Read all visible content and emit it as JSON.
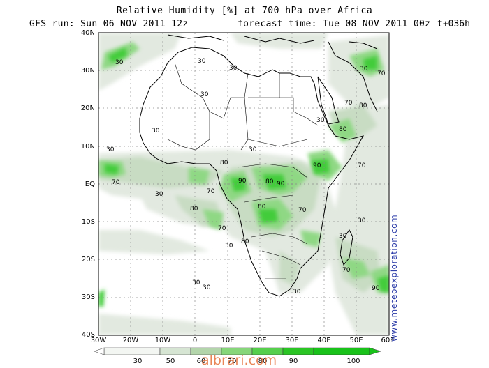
{
  "title": {
    "line1": "Relative Humidity [%] at 700 hPa over  Africa",
    "run": "GFS run: Sun 06 NOV 2011 12z",
    "forecast": "forecast time: Tue 08 NOV 2011 00z",
    "step": "t+036h"
  },
  "map": {
    "lat_labels": [
      "40N",
      "30N",
      "20N",
      "10N",
      "EQ",
      "10S",
      "20S",
      "30S",
      "40S"
    ],
    "lon_labels": [
      "30W",
      "20W",
      "10W",
      "0",
      "10E",
      "20E",
      "30E",
      "40E",
      "50E",
      "60E"
    ],
    "contour_labels": [
      "30",
      "70",
      "80",
      "90"
    ]
  },
  "colorbar": {
    "levels": [
      "30",
      "50",
      "60",
      "70",
      "80",
      "90",
      "100"
    ],
    "colors": [
      "#f3f6f2",
      "#d6e5d3",
      "#b3d5ab",
      "#86d67a",
      "#56cf4c",
      "#2ac524"
    ]
  },
  "credit": "www.meteoexploration.com",
  "watermark": "albrari.com"
}
